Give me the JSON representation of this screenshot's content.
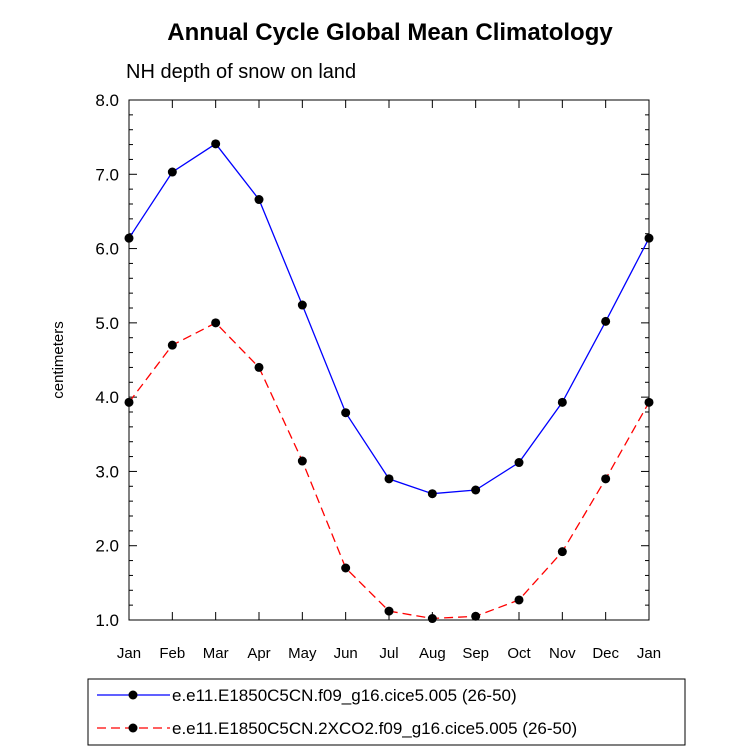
{
  "chart_data": {
    "type": "line",
    "title": "Annual Cycle Global Mean Climatology",
    "subtitle": "NH depth of snow on land",
    "ylabel": "centimeters",
    "xlabel": "",
    "ylim": [
      1.0,
      8.0
    ],
    "yticks": [
      "1.0",
      "2.0",
      "3.0",
      "4.0",
      "5.0",
      "6.0",
      "7.0",
      "8.0"
    ],
    "categories": [
      "Jan",
      "Feb",
      "Mar",
      "Apr",
      "May",
      "Jun",
      "Jul",
      "Aug",
      "Sep",
      "Oct",
      "Nov",
      "Dec",
      "Jan"
    ],
    "series": [
      {
        "name": "e.e11.E1850C5CN.f09_g16.cice5.005 (26-50)",
        "color": "#0000ff",
        "dash": "solid",
        "values": [
          6.14,
          7.03,
          7.41,
          6.66,
          5.24,
          3.79,
          2.9,
          2.7,
          2.75,
          3.12,
          3.93,
          5.02,
          6.14
        ]
      },
      {
        "name": "e.e11.E1850C5CN.2XCO2.f09_g16.cice5.005 (26-50)",
        "color": "#ff0000",
        "dash": "dashed",
        "values": [
          3.93,
          4.7,
          5.0,
          4.4,
          3.14,
          1.7,
          1.12,
          1.02,
          1.05,
          1.27,
          1.92,
          2.9,
          3.93
        ]
      }
    ],
    "grid": false,
    "legend_position": "bottom"
  }
}
